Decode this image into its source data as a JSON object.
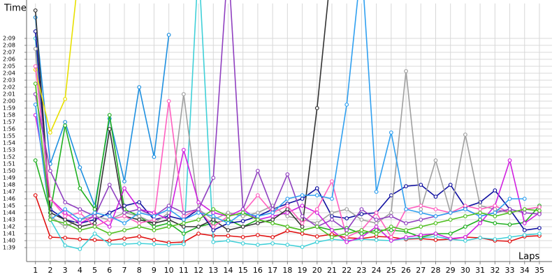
{
  "chart_data": {
    "type": "line",
    "y_label": "Time",
    "x_label": "Laps",
    "xlim": [
      0.4,
      35.85
    ],
    "xticks": [
      1,
      2,
      3,
      4,
      5,
      6,
      7,
      8,
      9,
      10,
      11,
      12,
      13,
      14,
      15,
      16,
      17,
      18,
      19,
      20,
      21,
      22,
      23,
      24,
      25,
      26,
      27,
      28,
      29,
      30,
      31,
      32,
      33,
      34,
      35
    ],
    "ylim": [
      97,
      134
    ],
    "yticks": [
      {
        "value": 99,
        "label": "1:39"
      },
      {
        "value": 100,
        "label": "1:40"
      },
      {
        "value": 101,
        "label": "1:41"
      },
      {
        "value": 102,
        "label": "1:42"
      },
      {
        "value": 103,
        "label": "1:43"
      },
      {
        "value": 104,
        "label": "1:44"
      },
      {
        "value": 105,
        "label": "1:45"
      },
      {
        "value": 106,
        "label": "1:46"
      },
      {
        "value": 107,
        "label": "1:47"
      },
      {
        "value": 108,
        "label": "1:48"
      },
      {
        "value": 109,
        "label": "1:49"
      },
      {
        "value": 110,
        "label": "1:50"
      },
      {
        "value": 111,
        "label": "1:51"
      },
      {
        "value": 112,
        "label": "1:52"
      },
      {
        "value": 113,
        "label": "1:53"
      },
      {
        "value": 114,
        "label": "1:54"
      },
      {
        "value": 115,
        "label": "1:55"
      },
      {
        "value": 116,
        "label": "1:56"
      },
      {
        "value": 117,
        "label": "1:57"
      },
      {
        "value": 118,
        "label": "1:58"
      },
      {
        "value": 119,
        "label": "1:59"
      },
      {
        "value": 120,
        "label": "2:00"
      },
      {
        "value": 121,
        "label": "2:01"
      },
      {
        "value": 122,
        "label": "2:02"
      },
      {
        "value": 123,
        "label": "2:03"
      },
      {
        "value": 124,
        "label": "2:04"
      },
      {
        "value": 125,
        "label": "2:05"
      },
      {
        "value": 126,
        "label": "2:06"
      },
      {
        "value": 127,
        "label": "2:07"
      },
      {
        "value": 128,
        "label": "2:08"
      },
      {
        "value": 129,
        "label": "2:09"
      }
    ],
    "grid": true,
    "x": [
      1,
      2,
      3,
      4,
      5,
      6,
      7,
      8,
      9,
      10,
      11,
      12,
      13,
      14,
      15,
      16,
      17,
      18,
      19,
      20,
      21,
      22,
      23,
      24,
      25,
      26,
      27,
      28,
      29,
      30,
      31,
      32,
      33,
      34,
      35
    ],
    "series": [
      {
        "color": "#e01010",
        "values": [
          106.5,
          100.5,
          100.4,
          100.2,
          100.1,
          100.0,
          100.3,
          100.6,
          100.1,
          99.7,
          99.8,
          101.0,
          100.7,
          100.7,
          100.5,
          100.8,
          100.5,
          101.4,
          101.0,
          100.6,
          100.9,
          100.4,
          100.3,
          100.6,
          100.5,
          100.2,
          100.3,
          100.1,
          100.2,
          100.5,
          100.4,
          100.0,
          99.9,
          100.6,
          100.7
        ]
      },
      {
        "color": "#40d0d8",
        "values": [
          129.0,
          103.0,
          99.3,
          98.8,
          101.0,
          99.5,
          99.5,
          99.6,
          99.5,
          99.4,
          99.5,
          140,
          99.8,
          100.0,
          99.6,
          99.4,
          99.6,
          99.4,
          99.1,
          99.8,
          100.2,
          100.0,
          100.2,
          100.1,
          100.0,
          100.3,
          100.4,
          100.6,
          100.2,
          100.0,
          100.4,
          100.2,
          100.5,
          100.8,
          101.0
        ]
      },
      {
        "color": "#1e90e0",
        "values": [
          132.0,
          111.0,
          117.0,
          110.5,
          105.0,
          117.5,
          108.5,
          122.0,
          112.0,
          129.5,
          null,
          null,
          null,
          null,
          null,
          null,
          null,
          null,
          null,
          null,
          null,
          null,
          null,
          null,
          null,
          null,
          null,
          null,
          null,
          null,
          null,
          null,
          null,
          null,
          null
        ]
      },
      {
        "color": "#20b020",
        "values": [
          111.5,
          104.0,
          116.5,
          107.5,
          104.5,
          118.0,
          104.5,
          103.5,
          102.0,
          102.5,
          101.0,
          102.0,
          102.5,
          103.0,
          102.0,
          103.0,
          102.5,
          102.0,
          101.5,
          102.0,
          101.5,
          101.8,
          101.0,
          101.5,
          101.5,
          101.3,
          100.5,
          101.0,
          101.0,
          102.0,
          103.0,
          102.5,
          102.3,
          102.6,
          105.0
        ]
      },
      {
        "color": "#1010a0",
        "values": [
          130.0,
          104.5,
          103.0,
          102.5,
          103.0,
          104.0,
          105.0,
          105.5,
          103.0,
          103.5,
          103.0,
          104.5,
          101.5,
          102.5,
          102.8,
          103.5,
          104.5,
          105.3,
          106.0,
          107.5,
          103.5,
          103.2,
          103.8,
          104.0,
          106.5,
          107.8,
          108.0,
          106.3,
          108.0,
          104.8,
          105.5,
          107.2,
          104.5,
          101.5,
          101.8
        ]
      },
      {
        "color": "#a0a0a0",
        "values": [
          127.5,
          103.5,
          102.0,
          103.0,
          103.5,
          103.0,
          104.0,
          103.5,
          102.5,
          104.0,
          121.0,
          104.5,
          103.0,
          104.0,
          103.5,
          104.0,
          105.0,
          103.5,
          103.0,
          102.5,
          104.0,
          104.5,
          103.0,
          102.5,
          104.0,
          124.3,
          104.5,
          111.5,
          104.0,
          115.2,
          105.0,
          104.5,
          104.0,
          104.5,
          104.8
        ]
      },
      {
        "color": "#d020e0",
        "values": [
          118.0,
          106.0,
          104.0,
          102.5,
          103.5,
          102.0,
          107.5,
          104.5,
          104.0,
          103.0,
          113.0,
          105.5,
          104.0,
          103.5,
          104.5,
          103.0,
          103.5,
          104.0,
          105.0,
          104.0,
          101.5,
          99.8,
          100.5,
          102.0,
          100.0,
          100.5,
          100.8,
          101.0,
          100.3,
          100.5,
          102.5,
          105.0,
          111.5,
          102.5,
          104.0
        ]
      },
      {
        "color": "#333333",
        "values": [
          133.0,
          104.0,
          103.0,
          102.0,
          102.5,
          116.0,
          103.5,
          103.0,
          102.5,
          103.0,
          102.0,
          102.0,
          103.0,
          101.5,
          102.0,
          102.5,
          103.0,
          104.5,
          102.0,
          119.0,
          140,
          null,
          null,
          null,
          null,
          null,
          null,
          null,
          null,
          null,
          null,
          null,
          null,
          null,
          null
        ]
      },
      {
        "color": "#e8e000",
        "values": [
          124.5,
          115.5,
          120.3,
          140,
          null,
          null,
          null,
          null,
          null,
          null,
          null,
          null,
          null,
          null,
          null,
          null,
          null,
          null,
          null,
          null,
          null,
          null,
          null,
          null,
          null,
          null,
          null,
          null,
          null,
          null,
          null,
          null,
          null,
          null,
          null
        ]
      },
      {
        "color": "#ff60c0",
        "values": [
          125.0,
          106.0,
          103.5,
          104.0,
          102.0,
          103.0,
          103.5,
          102.5,
          103.0,
          120.0,
          103.5,
          104.5,
          102.0,
          103.5,
          104.0,
          106.5,
          104.0,
          105.0,
          102.5,
          104.5,
          108.5,
          100.5,
          101.5,
          104.0,
          100.5,
          104.5,
          105.0,
          104.5,
          104.0,
          105.0,
          104.5,
          105.0,
          104.0,
          104.5,
          104.8
        ]
      },
      {
        "color": "#9040c0",
        "values": [
          121.0,
          110.0,
          105.5,
          104.5,
          103.5,
          108.0,
          104.0,
          104.5,
          103.5,
          105.0,
          104.0,
          104.5,
          109.0,
          140,
          104.5,
          110.0,
          104.5,
          109.5,
          103.5,
          102.0,
          103.0,
          101.5,
          104.5,
          103.0,
          103.5,
          102.5,
          103.0,
          103.5,
          104.0,
          104.5,
          103.5,
          104.0,
          104.5,
          104.0,
          103.8
        ]
      },
      {
        "color": "#30a0f0",
        "values": [
          119.5,
          103.0,
          104.5,
          103.0,
          104.0,
          103.5,
          102.5,
          104.0,
          103.5,
          104.5,
          103.0,
          104.0,
          103.5,
          102.5,
          104.0,
          103.5,
          104.0,
          106.0,
          106.5,
          106.5,
          106.0,
          119.5,
          140,
          107.0,
          115.5,
          104.5,
          104.0,
          103.5,
          104.0,
          104.5,
          103.5,
          104.0,
          106.0,
          106.0,
          null
        ]
      },
      {
        "color": "#50c020",
        "values": [
          122.5,
          103.0,
          102.5,
          101.5,
          102.0,
          101.0,
          101.5,
          102.0,
          101.5,
          102.0,
          102.5,
          103.0,
          104.5,
          103.5,
          104.0,
          103.0,
          102.5,
          102.0,
          101.5,
          102.0,
          100.5,
          101.0,
          101.5,
          101.0,
          102.0,
          101.5,
          102.0,
          102.5,
          103.0,
          103.5,
          104.0,
          103.5,
          104.0,
          104.5,
          104.3
        ]
      }
    ]
  }
}
